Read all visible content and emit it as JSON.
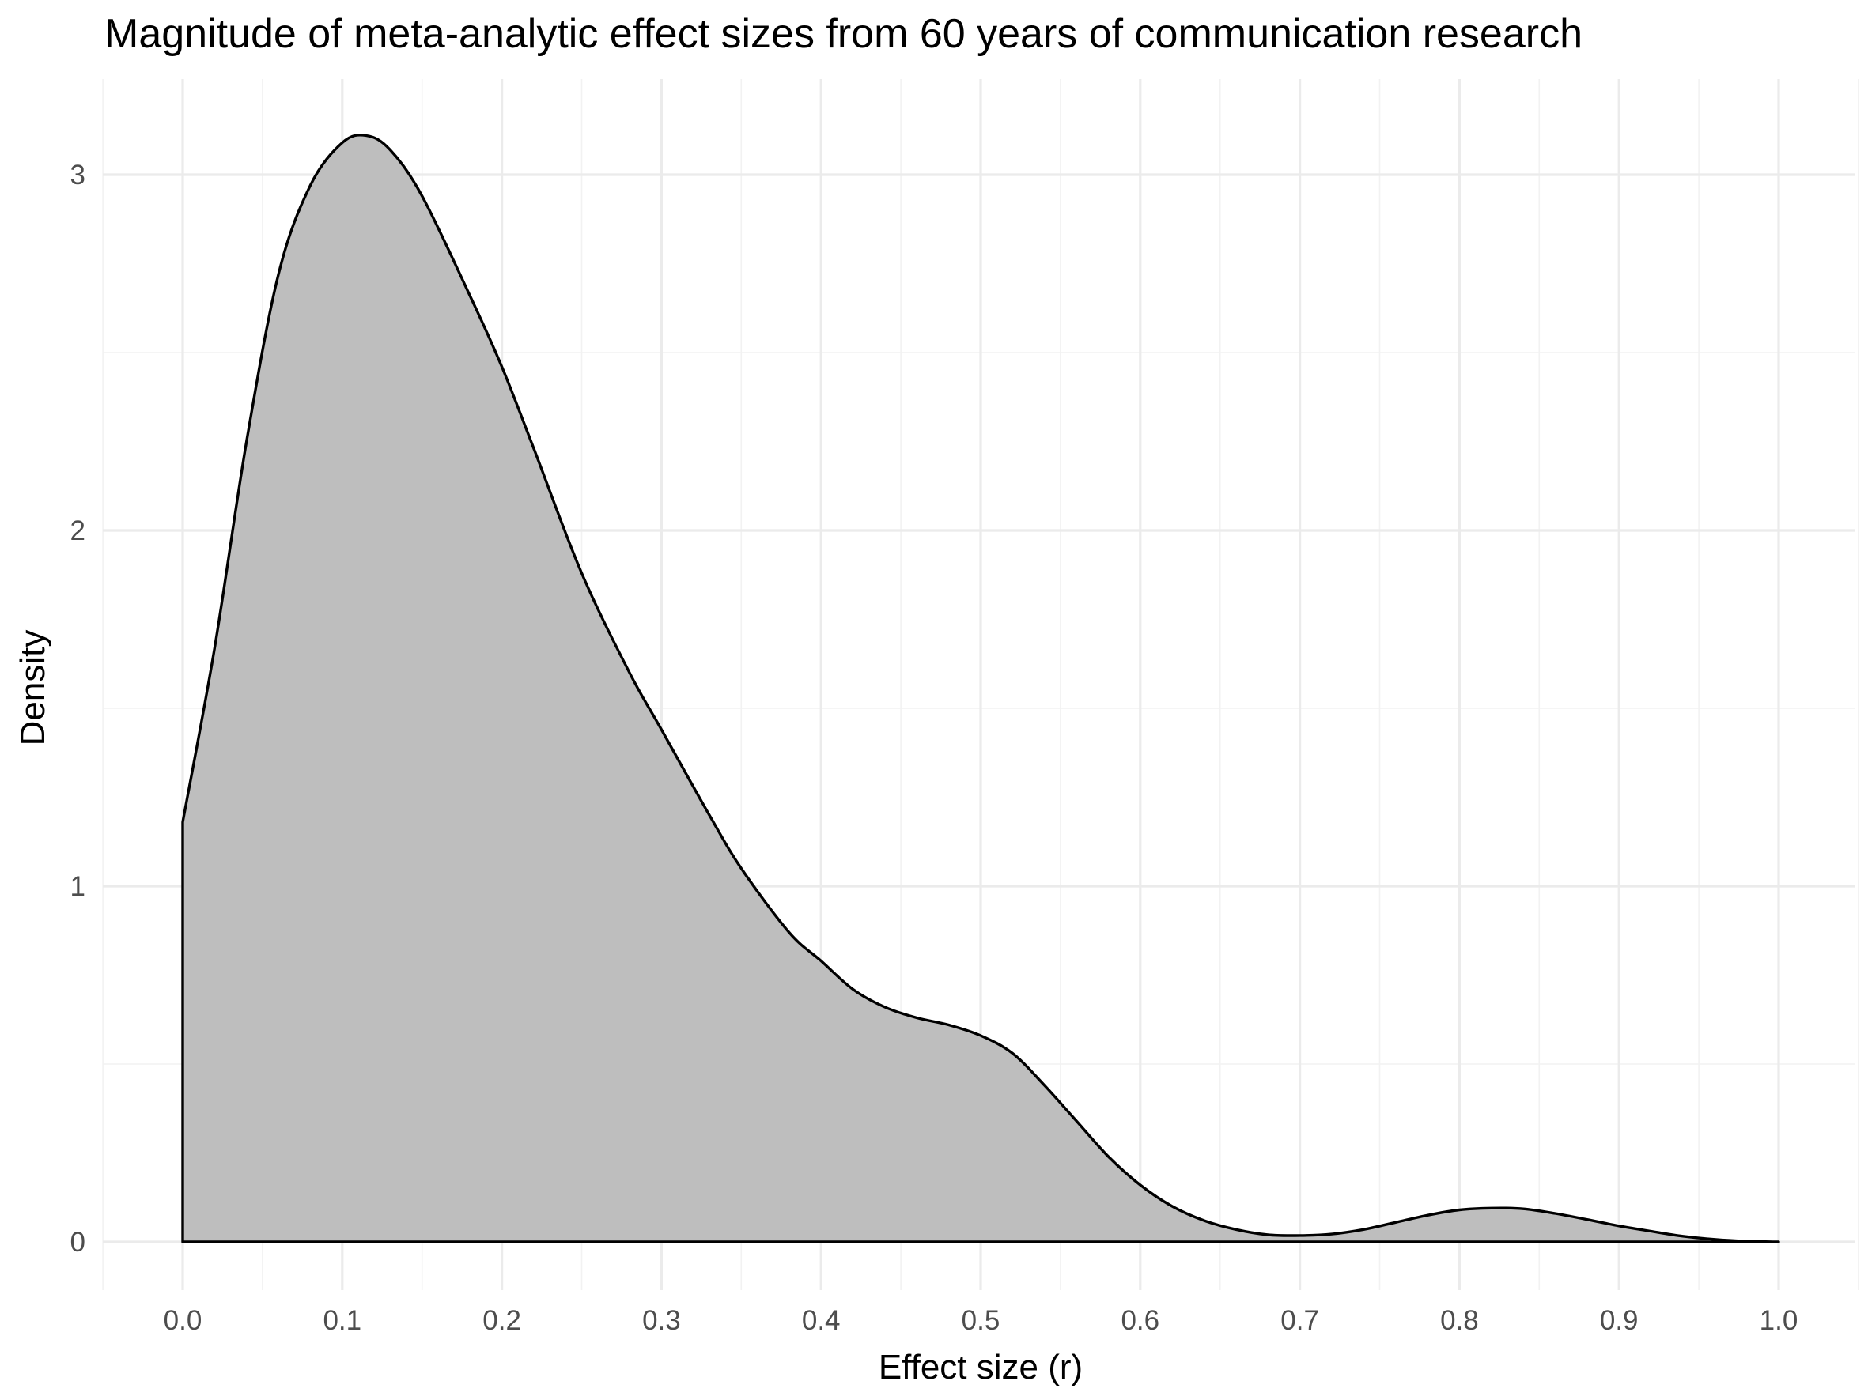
{
  "chart_data": {
    "type": "area",
    "title": "Magnitude of meta-analytic effect sizes from 60 years of communication research",
    "xlabel": "Effect size (r)",
    "ylabel": "Density",
    "xlim": [
      -0.05,
      1.05
    ],
    "ylim": [
      -0.14,
      3.25
    ],
    "x_ticks": [
      0.0,
      0.1,
      0.2,
      0.3,
      0.4,
      0.5,
      0.6,
      0.7,
      0.8,
      0.9,
      1.0
    ],
    "x_tick_labels": [
      "0.0",
      "0.1",
      "0.2",
      "0.3",
      "0.4",
      "0.5",
      "0.6",
      "0.7",
      "0.8",
      "0.9",
      "1.0"
    ],
    "y_ticks": [
      0,
      1,
      2,
      3
    ],
    "y_tick_labels": [
      "0",
      "1",
      "2",
      "3"
    ],
    "grid": true,
    "legend": "none",
    "fill_color": "#bebebe",
    "line_color": "#000000",
    "series": [
      {
        "x": [
          0.0,
          0.02,
          0.04,
          0.06,
          0.08,
          0.1,
          0.115,
          0.13,
          0.15,
          0.18,
          0.2,
          0.22,
          0.25,
          0.28,
          0.3,
          0.33,
          0.35,
          0.38,
          0.4,
          0.42,
          0.44,
          0.46,
          0.48,
          0.5,
          0.52,
          0.54,
          0.56,
          0.58,
          0.6,
          0.62,
          0.64,
          0.66,
          0.68,
          0.7,
          0.72,
          0.74,
          0.76,
          0.78,
          0.8,
          0.82,
          0.84,
          0.86,
          0.88,
          0.9,
          0.92,
          0.94,
          0.96,
          0.98,
          1.0
        ],
        "values": [
          1.18,
          1.67,
          2.25,
          2.72,
          2.97,
          3.09,
          3.11,
          3.07,
          2.94,
          2.66,
          2.46,
          2.23,
          1.88,
          1.6,
          1.44,
          1.2,
          1.05,
          0.87,
          0.79,
          0.71,
          0.66,
          0.63,
          0.61,
          0.58,
          0.53,
          0.44,
          0.34,
          0.24,
          0.16,
          0.1,
          0.06,
          0.035,
          0.02,
          0.018,
          0.022,
          0.035,
          0.055,
          0.075,
          0.09,
          0.095,
          0.093,
          0.08,
          0.063,
          0.045,
          0.03,
          0.016,
          0.007,
          0.002,
          0.0
        ]
      }
    ]
  }
}
